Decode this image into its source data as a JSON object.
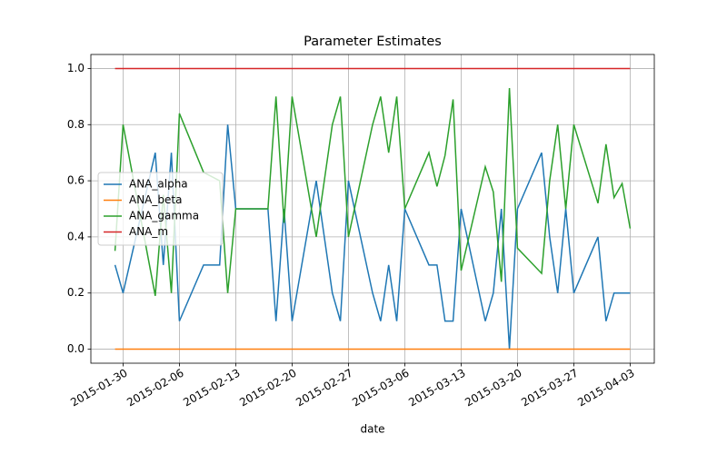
{
  "chart_data": {
    "type": "line",
    "title": "Parameter Estimates",
    "xlabel": "date",
    "x": [
      "2015-01-29",
      "2015-01-30",
      "2015-02-03",
      "2015-02-04",
      "2015-02-05",
      "2015-02-06",
      "2015-02-09",
      "2015-02-11",
      "2015-02-12",
      "2015-02-13",
      "2015-02-17",
      "2015-02-18",
      "2015-02-19",
      "2015-02-20",
      "2015-02-23",
      "2015-02-25",
      "2015-02-26",
      "2015-02-27",
      "2015-03-02",
      "2015-03-03",
      "2015-03-04",
      "2015-03-05",
      "2015-03-06",
      "2015-03-09",
      "2015-03-10",
      "2015-03-11",
      "2015-03-12",
      "2015-03-13",
      "2015-03-16",
      "2015-03-17",
      "2015-03-18",
      "2015-03-19",
      "2015-03-20",
      "2015-03-23",
      "2015-03-24",
      "2015-03-25",
      "2015-03-26",
      "2015-03-27",
      "2015-03-30",
      "2015-03-31",
      "2015-04-01",
      "2015-04-02",
      "2015-04-03"
    ],
    "series": [
      {
        "name": "ANA_alpha",
        "color": "#1f77b4",
        "values": [
          0.3,
          0.2,
          0.7,
          0.3,
          0.7,
          0.1,
          0.3,
          0.3,
          0.8,
          0.5,
          0.5,
          0.1,
          0.5,
          0.1,
          0.6,
          0.2,
          0.1,
          0.6,
          0.2,
          0.1,
          0.3,
          0.1,
          0.5,
          0.3,
          0.3,
          0.1,
          0.1,
          0.5,
          0.1,
          0.2,
          0.5,
          0.0,
          0.5,
          0.7,
          0.4,
          0.2,
          0.5,
          0.2,
          0.4,
          0.1,
          0.2,
          0.2,
          0.2
        ]
      },
      {
        "name": "ANA_beta",
        "color": "#ff7f0e",
        "values": [
          0,
          0,
          0,
          0,
          0,
          0,
          0,
          0,
          0,
          0,
          0,
          0,
          0,
          0,
          0,
          0,
          0,
          0,
          0,
          0,
          0,
          0,
          0,
          0,
          0,
          0,
          0,
          0,
          0,
          0,
          0,
          0,
          0,
          0,
          0,
          0,
          0,
          0,
          0,
          0,
          0,
          0,
          0
        ]
      },
      {
        "name": "ANA_gamma",
        "color": "#2ca02c",
        "values": [
          0.35,
          0.8,
          0.19,
          0.55,
          0.2,
          0.84,
          0.63,
          0.6,
          0.2,
          0.5,
          0.5,
          0.9,
          0.45,
          0.9,
          0.4,
          0.8,
          0.9,
          0.4,
          0.8,
          0.9,
          0.7,
          0.9,
          0.5,
          0.7,
          0.58,
          0.69,
          0.89,
          0.28,
          0.65,
          0.56,
          0.24,
          0.93,
          0.36,
          0.27,
          0.6,
          0.8,
          0.5,
          0.8,
          0.52,
          0.73,
          0.54,
          0.59,
          0.43
        ]
      },
      {
        "name": "ANA_m",
        "color": "#d62728",
        "values": [
          1,
          1,
          1,
          1,
          1,
          1,
          1,
          1,
          1,
          1,
          1,
          1,
          1,
          1,
          1,
          1,
          1,
          1,
          1,
          1,
          1,
          1,
          1,
          1,
          1,
          1,
          1,
          1,
          1,
          1,
          1,
          1,
          1,
          1,
          1,
          1,
          1,
          1,
          1,
          1,
          1,
          1,
          1
        ]
      }
    ],
    "xlim": [
      "2015-01-26",
      "2015-04-06"
    ],
    "xticks": [
      "2015-01-30",
      "2015-02-06",
      "2015-02-13",
      "2015-02-20",
      "2015-02-27",
      "2015-03-06",
      "2015-03-13",
      "2015-03-20",
      "2015-03-27",
      "2015-04-03"
    ],
    "ylim": [
      -0.05,
      1.05
    ],
    "yticks": [
      {
        "value": 0,
        "label": "0.0"
      },
      {
        "value": 0.2,
        "label": "0.2"
      },
      {
        "value": 0.4,
        "label": "0.4"
      },
      {
        "value": 0.6,
        "label": "0.6"
      },
      {
        "value": 0.8,
        "label": "0.8"
      },
      {
        "value": 1,
        "label": "1.0"
      }
    ],
    "grid": true,
    "legend": "center left"
  }
}
